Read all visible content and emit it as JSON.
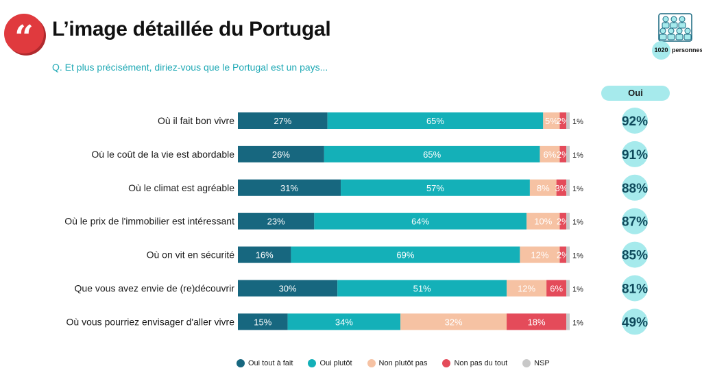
{
  "header": {
    "title": "L’image détaillée du Portugal",
    "subtitle": "Q. Et plus précisément, diriez-vous que le Portugal est un pays...",
    "quote_glyph": "“",
    "sample_count": "1020",
    "sample_label": "personnes",
    "oui_column_label": "Oui"
  },
  "colors": {
    "oui_tout_a_fait": "#17677f",
    "oui_plutot": "#14b0b8",
    "non_plutot_pas": "#f6c2a3",
    "non_pas_du_tout": "#e44b5a",
    "nsp": "#c8c8c8",
    "oui_circle": "#a6eaec",
    "accent_red": "#e03a3e"
  },
  "chart_data": {
    "type": "bar",
    "orientation": "horizontal",
    "stacked": true,
    "categories": [
      "Où il fait bon vivre",
      "Où le coût de la vie est abordable",
      "Où le climat est agréable",
      "Où le prix de l'immobilier est intéressant",
      "Où on vit en sécurité",
      "Que vous avez envie de (re)découvrir",
      "Où vous pourriez envisager d'aller vivre"
    ],
    "series": [
      {
        "name": "Oui tout à fait",
        "values": [
          27,
          26,
          31,
          23,
          16,
          30,
          15
        ],
        "labels": [
          "27%",
          "26%",
          "31%",
          "23%",
          "16%",
          "30%",
          "15%"
        ]
      },
      {
        "name": "Oui plutôt",
        "values": [
          65,
          65,
          57,
          64,
          69,
          51,
          34
        ],
        "labels": [
          "65%",
          "65%",
          "57%",
          "64%",
          "69%",
          "51%",
          "34%"
        ]
      },
      {
        "name": "Non plutôt pas",
        "values": [
          5,
          6,
          8,
          10,
          12,
          12,
          32
        ],
        "labels": [
          "5%",
          "6%",
          "8%",
          "10%",
          "12%",
          "12%",
          "32%"
        ]
      },
      {
        "name": "Non pas du tout",
        "values": [
          2,
          2,
          3,
          2,
          2,
          6,
          18
        ],
        "labels": [
          "2%",
          "2%",
          "3%",
          "2%",
          "2%",
          "6%",
          "18%"
        ]
      },
      {
        "name": "NSP",
        "values": [
          1,
          1,
          1,
          1,
          1,
          1,
          1
        ],
        "labels": [
          "1%",
          "1%",
          "1%",
          "1%",
          "1%",
          "1%",
          "1%"
        ]
      }
    ],
    "totals_oui": [
      "92%",
      "91%",
      "88%",
      "87%",
      "85%",
      "81%",
      "49%"
    ],
    "legend": [
      "Oui tout à fait",
      "Oui plutôt",
      "Non plutôt pas",
      "Non pas du tout",
      "NSP"
    ],
    "legend_placement": "bottom",
    "grid": false
  }
}
